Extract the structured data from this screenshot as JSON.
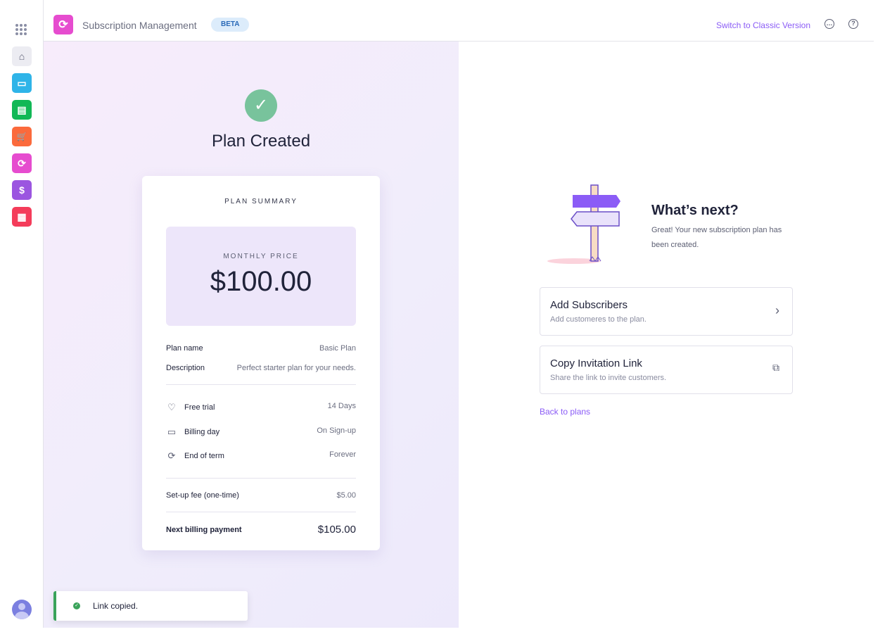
{
  "sidebar": {
    "apps": [
      {
        "name": "home",
        "color": "#ececf2",
        "glyph": "⌂"
      },
      {
        "name": "monitor",
        "color": "#2fb4e8",
        "glyph": "▭"
      },
      {
        "name": "notes",
        "color": "#11b856",
        "glyph": "▤"
      },
      {
        "name": "cart",
        "color": "#fb6a3c",
        "glyph": "🛒"
      },
      {
        "name": "subscriptions",
        "color": "#e64ccf",
        "glyph": "⟳"
      },
      {
        "name": "invoice",
        "color": "#9b55e0",
        "glyph": "$"
      },
      {
        "name": "dashboard",
        "color": "#f43c5a",
        "glyph": "▦"
      }
    ]
  },
  "header": {
    "title": "Subscription Management",
    "badge": "BETA",
    "classic_link": "Switch to Classic Version"
  },
  "left": {
    "title": "Plan Created",
    "summary": {
      "heading": "PLAN SUMMARY",
      "price_label": "MONTHLY PRICE",
      "price": "$100.00",
      "plan_name_label": "Plan name",
      "plan_name": "Basic Plan",
      "description_label": "Description",
      "description": "Perfect starter plan for your needs.",
      "free_trial_label": "Free trial",
      "free_trial": "14 Days",
      "billing_day_label": "Billing day",
      "billing_day": "On Sign-up",
      "end_term_label": "End of term",
      "end_term": "Forever",
      "setup_fee_label": "Set-up fee (one-time)",
      "setup_fee": "$5.00",
      "next_payment_label": "Next billing payment",
      "next_payment": "$105.00"
    }
  },
  "toast": {
    "text": "Link copied."
  },
  "right": {
    "heading": "What’s next?",
    "text": "Great! Your new subscription plan has been created.",
    "options": [
      {
        "title": "Add Subscribers",
        "subtitle": "Add customeres to the plan."
      },
      {
        "title": "Copy Invitation Link",
        "subtitle": "Share the link to invite customers."
      }
    ],
    "back": "Back to plans"
  }
}
